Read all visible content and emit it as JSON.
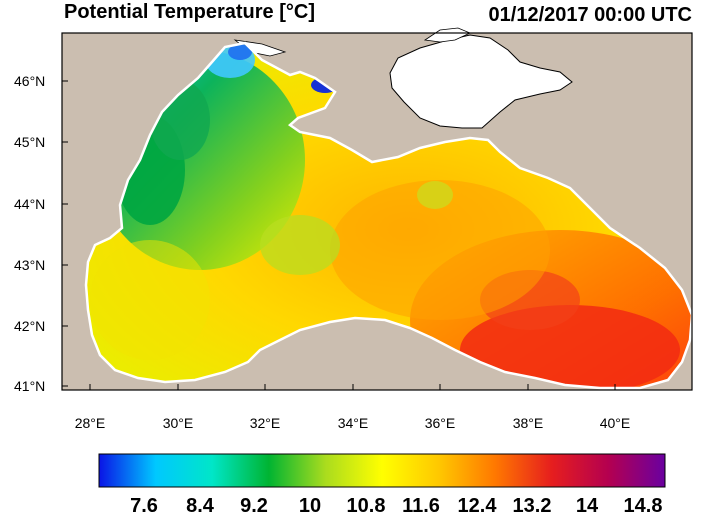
{
  "header": {
    "title": "Potential Temperature [°C]",
    "timestamp": "01/12/2017 00:00 UTC"
  },
  "map": {
    "lon_ticks": [
      "28°E",
      "30°E",
      "32°E",
      "34°E",
      "36°E",
      "38°E",
      "40°E"
    ],
    "lat_ticks": [
      "46°N",
      "45°N",
      "44°N",
      "43°N",
      "42°N",
      "41°N"
    ],
    "land_color": "#cbbeb0",
    "water_outline_color": "#ffffff"
  },
  "colorbar": {
    "labels": [
      "7.6",
      "8.4",
      "9.2",
      "10",
      "10.8",
      "11.6",
      "12.4",
      "13.2",
      "14",
      "14.8"
    ],
    "colors": [
      "#0a14e6",
      "#00c8ff",
      "#00e6c8",
      "#00b432",
      "#aadc1e",
      "#ffff00",
      "#ffc800",
      "#ff7800",
      "#e61e1e",
      "#b40050",
      "#6a00a0"
    ]
  }
}
